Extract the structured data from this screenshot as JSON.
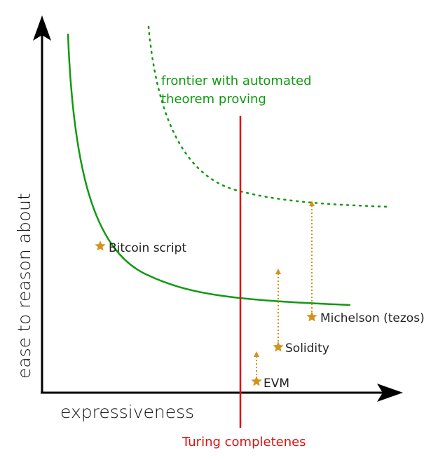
{
  "axes": {
    "x_label": "expressiveness",
    "y_label": "ease to reason about"
  },
  "annotations": {
    "frontier_line1": "frontier with automated",
    "frontier_line2": "theorem proving",
    "turing": "Turing completenes"
  },
  "languages": [
    {
      "name": "Bitcoin script"
    },
    {
      "name": "EVM"
    },
    {
      "name": "Solidity"
    },
    {
      "name": "Michelson (tezos)"
    }
  ],
  "colors": {
    "axis": "#000000",
    "frontier": "#119911",
    "turing": "#dd1111",
    "marker": "#d4921b"
  }
}
